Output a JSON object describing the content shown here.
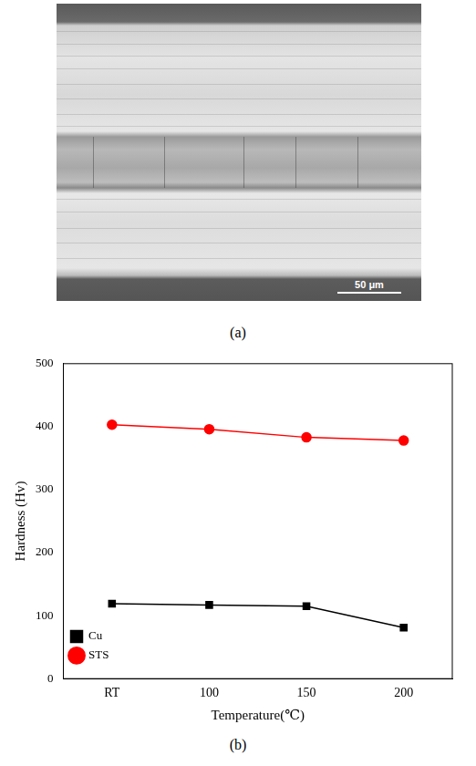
{
  "micrograph": {
    "scale_bar": "50 μm",
    "caption": "(a)"
  },
  "chart_data": {
    "type": "line",
    "caption": "(b)",
    "x_label": "Temperature(℃)",
    "y_label": "Hardness (Hv)",
    "categories": [
      "RT",
      "100",
      "150",
      "200"
    ],
    "series": [
      {
        "name": "Cu",
        "color": "#000000",
        "marker": "square",
        "line_style": "solid",
        "values": [
          119,
          117,
          115,
          81
        ]
      },
      {
        "name": "STS",
        "color": "#ff0000",
        "marker": "circle",
        "line_style": "solid",
        "values": [
          403,
          396,
          383,
          378
        ]
      }
    ],
    "ylim": [
      0,
      500
    ],
    "yticks": [
      0,
      100,
      200,
      300,
      400,
      500
    ],
    "grid": false,
    "legend": "upper right"
  }
}
